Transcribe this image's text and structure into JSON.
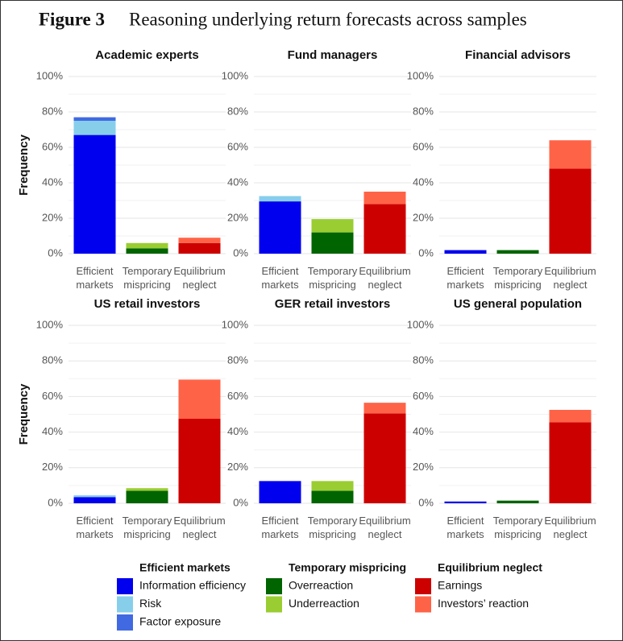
{
  "figure_label": "Figure 3",
  "title": "Reasoning underlying return forecasts across samples",
  "chart_data": [
    {
      "type": "stacked_bar",
      "title": "Academic experts",
      "ylabel": "Frequency",
      "categories": [
        "Efficient markets",
        "Temporary mispricing",
        "Equilibrium neglect"
      ],
      "ylim": [
        0,
        100
      ],
      "yticks": [
        {
          "value": 0,
          "label": "0%"
        },
        {
          "value": 20,
          "label": "20%"
        },
        {
          "value": 40,
          "label": "40%"
        },
        {
          "value": 60,
          "label": "60%"
        },
        {
          "value": 80,
          "label": "80%"
        },
        {
          "value": 100,
          "label": "100%"
        }
      ],
      "grid": true,
      "series": [
        {
          "name": "Information efficiency",
          "color": "#0000ee",
          "values": [
            67,
            null,
            null
          ]
        },
        {
          "name": "Risk",
          "color": "#87ceeb",
          "values": [
            8,
            null,
            null
          ]
        },
        {
          "name": "Factor exposure",
          "color": "#4169e1",
          "values": [
            2,
            null,
            null
          ]
        },
        {
          "name": "Overreaction",
          "color": "#006400",
          "values": [
            null,
            3,
            null
          ]
        },
        {
          "name": "Underreaction",
          "color": "#9acd32",
          "values": [
            null,
            3,
            null
          ]
        },
        {
          "name": "Earnings",
          "color": "#cd0000",
          "values": [
            null,
            null,
            6
          ]
        },
        {
          "name": "Investors’ reaction",
          "color": "#ff6347",
          "values": [
            null,
            null,
            3
          ]
        }
      ]
    },
    {
      "type": "stacked_bar",
      "title": "Fund managers",
      "categories": [
        "Efficient markets",
        "Temporary mispricing",
        "Equilibrium neglect"
      ],
      "ylim": [
        0,
        100
      ],
      "yticks": [
        {
          "value": 0,
          "label": "0%"
        },
        {
          "value": 20,
          "label": "20%"
        },
        {
          "value": 40,
          "label": "40%"
        },
        {
          "value": 60,
          "label": "60%"
        },
        {
          "value": 80,
          "label": "80%"
        },
        {
          "value": 100,
          "label": "100%"
        }
      ],
      "grid": true,
      "series": [
        {
          "name": "Information efficiency",
          "color": "#0000ee",
          "values": [
            29.5,
            null,
            null
          ]
        },
        {
          "name": "Risk",
          "color": "#87ceeb",
          "values": [
            3,
            null,
            null
          ]
        },
        {
          "name": "Factor exposure",
          "color": "#4169e1",
          "values": [
            0,
            null,
            null
          ]
        },
        {
          "name": "Overreaction",
          "color": "#006400",
          "values": [
            null,
            12,
            null
          ]
        },
        {
          "name": "Underreaction",
          "color": "#9acd32",
          "values": [
            null,
            7.5,
            null
          ]
        },
        {
          "name": "Earnings",
          "color": "#cd0000",
          "values": [
            null,
            null,
            28
          ]
        },
        {
          "name": "Investors’ reaction",
          "color": "#ff6347",
          "values": [
            null,
            null,
            7
          ]
        }
      ]
    },
    {
      "type": "stacked_bar",
      "title": "Financial advisors",
      "categories": [
        "Efficient markets",
        "Temporary mispricing",
        "Equilibrium neglect"
      ],
      "ylim": [
        0,
        100
      ],
      "yticks": [
        {
          "value": 0,
          "label": "0%"
        },
        {
          "value": 20,
          "label": "20%"
        },
        {
          "value": 40,
          "label": "40%"
        },
        {
          "value": 60,
          "label": "60%"
        },
        {
          "value": 80,
          "label": "80%"
        },
        {
          "value": 100,
          "label": "100%"
        }
      ],
      "grid": true,
      "series": [
        {
          "name": "Information efficiency",
          "color": "#0000ee",
          "values": [
            2,
            null,
            null
          ]
        },
        {
          "name": "Risk",
          "color": "#87ceeb",
          "values": [
            0,
            null,
            null
          ]
        },
        {
          "name": "Factor exposure",
          "color": "#4169e1",
          "values": [
            0,
            null,
            null
          ]
        },
        {
          "name": "Overreaction",
          "color": "#006400",
          "values": [
            null,
            2,
            null
          ]
        },
        {
          "name": "Underreaction",
          "color": "#9acd32",
          "values": [
            null,
            0,
            null
          ]
        },
        {
          "name": "Earnings",
          "color": "#cd0000",
          "values": [
            null,
            null,
            48
          ]
        },
        {
          "name": "Investors’ reaction",
          "color": "#ff6347",
          "values": [
            null,
            null,
            16
          ]
        }
      ]
    },
    {
      "type": "stacked_bar",
      "title": "US retail investors",
      "ylabel": "Frequency",
      "categories": [
        "Efficient markets",
        "Temporary mispricing",
        "Equilibrium neglect"
      ],
      "ylim": [
        0,
        100
      ],
      "yticks": [
        {
          "value": 0,
          "label": "0%"
        },
        {
          "value": 20,
          "label": "20%"
        },
        {
          "value": 40,
          "label": "40%"
        },
        {
          "value": 60,
          "label": "60%"
        },
        {
          "value": 80,
          "label": "80%"
        },
        {
          "value": 100,
          "label": "100%"
        }
      ],
      "grid": true,
      "series": [
        {
          "name": "Information efficiency",
          "color": "#0000ee",
          "values": [
            3.5,
            null,
            null
          ]
        },
        {
          "name": "Risk",
          "color": "#87ceeb",
          "values": [
            1,
            null,
            null
          ]
        },
        {
          "name": "Factor exposure",
          "color": "#4169e1",
          "values": [
            0,
            null,
            null
          ]
        },
        {
          "name": "Overreaction",
          "color": "#006400",
          "values": [
            null,
            7,
            null
          ]
        },
        {
          "name": "Underreaction",
          "color": "#9acd32",
          "values": [
            null,
            1.5,
            null
          ]
        },
        {
          "name": "Earnings",
          "color": "#cd0000",
          "values": [
            null,
            null,
            47.5
          ]
        },
        {
          "name": "Investors’ reaction",
          "color": "#ff6347",
          "values": [
            null,
            null,
            22
          ]
        }
      ]
    },
    {
      "type": "stacked_bar",
      "title": "GER retail investors",
      "categories": [
        "Efficient markets",
        "Temporary mispricing",
        "Equilibrium neglect"
      ],
      "ylim": [
        0,
        100
      ],
      "yticks": [
        {
          "value": 0,
          "label": "0%"
        },
        {
          "value": 20,
          "label": "20%"
        },
        {
          "value": 40,
          "label": "40%"
        },
        {
          "value": 60,
          "label": "60%"
        },
        {
          "value": 80,
          "label": "80%"
        },
        {
          "value": 100,
          "label": "100%"
        }
      ],
      "grid": true,
      "series": [
        {
          "name": "Information efficiency",
          "color": "#0000ee",
          "values": [
            12.5,
            null,
            null
          ]
        },
        {
          "name": "Risk",
          "color": "#87ceeb",
          "values": [
            0,
            null,
            null
          ]
        },
        {
          "name": "Factor exposure",
          "color": "#4169e1",
          "values": [
            0,
            null,
            null
          ]
        },
        {
          "name": "Overreaction",
          "color": "#006400",
          "values": [
            null,
            7,
            null
          ]
        },
        {
          "name": "Underreaction",
          "color": "#9acd32",
          "values": [
            null,
            5.5,
            null
          ]
        },
        {
          "name": "Earnings",
          "color": "#cd0000",
          "values": [
            null,
            null,
            50.5
          ]
        },
        {
          "name": "Investors’ reaction",
          "color": "#ff6347",
          "values": [
            null,
            null,
            6
          ]
        }
      ]
    },
    {
      "type": "stacked_bar",
      "title": "US general population",
      "categories": [
        "Efficient markets",
        "Temporary mispricing",
        "Equilibrium neglect"
      ],
      "ylim": [
        0,
        100
      ],
      "yticks": [
        {
          "value": 0,
          "label": "0%"
        },
        {
          "value": 20,
          "label": "20%"
        },
        {
          "value": 40,
          "label": "40%"
        },
        {
          "value": 60,
          "label": "60%"
        },
        {
          "value": 80,
          "label": "80%"
        },
        {
          "value": 100,
          "label": "100%"
        }
      ],
      "grid": true,
      "series": [
        {
          "name": "Information efficiency",
          "color": "#0000ee",
          "values": [
            1,
            null,
            null
          ]
        },
        {
          "name": "Risk",
          "color": "#87ceeb",
          "values": [
            0,
            null,
            null
          ]
        },
        {
          "name": "Factor exposure",
          "color": "#4169e1",
          "values": [
            0,
            null,
            null
          ]
        },
        {
          "name": "Overreaction",
          "color": "#006400",
          "values": [
            null,
            1.5,
            null
          ]
        },
        {
          "name": "Underreaction",
          "color": "#9acd32",
          "values": [
            null,
            0,
            null
          ]
        },
        {
          "name": "Earnings",
          "color": "#cd0000",
          "values": [
            null,
            null,
            45.5
          ]
        },
        {
          "name": "Investors’ reaction",
          "color": "#ff6347",
          "values": [
            null,
            null,
            7
          ]
        }
      ]
    }
  ]
}
